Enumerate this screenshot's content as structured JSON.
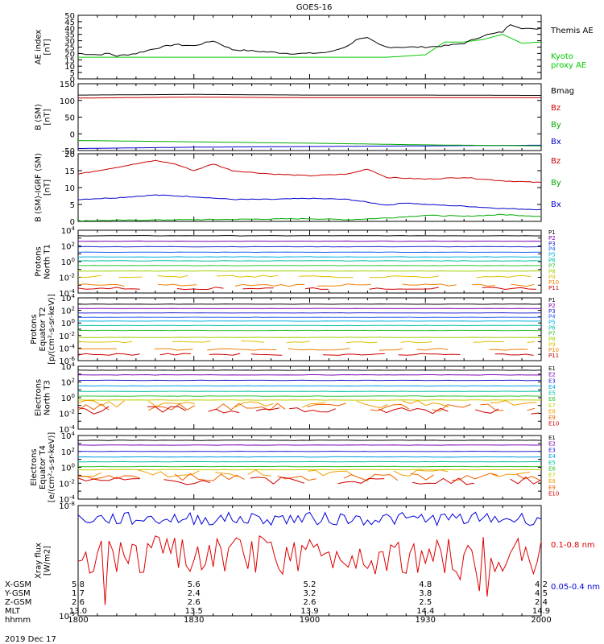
{
  "title": "GOES-16",
  "date_label": "2019 Dec 17",
  "time_axis": {
    "rows": [
      {
        "label": "X-GSM",
        "values": [
          "5.8",
          "5.6",
          "5.2",
          "4.8",
          "4.2"
        ]
      },
      {
        "label": "Y-GSM",
        "values": [
          "1.7",
          "2.4",
          "3.2",
          "3.8",
          "4.5"
        ]
      },
      {
        "label": "Z-GSM",
        "values": [
          "2.6",
          "2.6",
          "2.6",
          "2.5",
          "2.4"
        ]
      },
      {
        "label": "MLT",
        "values": [
          "13.0",
          "13.5",
          "13.9",
          "14.4",
          "14.9"
        ]
      },
      {
        "label": "hhmm",
        "values": [
          "1800",
          "1830",
          "1900",
          "1930",
          "2000"
        ]
      }
    ]
  },
  "chart_data": [
    {
      "type": "line",
      "ylabel": [
        "AE index",
        "[nT]"
      ],
      "ylim": [
        0,
        50
      ],
      "yticks": [
        "0",
        "5",
        "10",
        "15",
        "20",
        "25",
        "30",
        "35",
        "40",
        "45",
        "50"
      ],
      "x_minutes": [
        0,
        120
      ],
      "series": [
        {
          "name": "Kyoto\nproxy AE",
          "color": "#00cc00",
          "x": [
            0,
            20,
            40,
            60,
            80,
            90,
            95,
            100,
            105,
            110,
            115,
            120
          ],
          "y": [
            17,
            17,
            17,
            17,
            17,
            19,
            29,
            29,
            31,
            35,
            28,
            29
          ]
        },
        {
          "name": "Themis AE",
          "color": "#000000",
          "x": [
            0,
            5,
            8,
            10,
            15,
            20,
            25,
            30,
            35,
            40,
            45,
            50,
            55,
            60,
            65,
            70,
            72,
            75,
            78,
            80,
            85,
            90,
            95,
            100,
            105,
            110,
            112,
            115,
            118,
            120
          ],
          "y": [
            20,
            19,
            20,
            18,
            20,
            24,
            27,
            26,
            30,
            23,
            22,
            21,
            20,
            20,
            21,
            26,
            31,
            32,
            27,
            25,
            25,
            25,
            26,
            28,
            34,
            37,
            43,
            40,
            39,
            40
          ]
        }
      ]
    },
    {
      "type": "line",
      "ylabel": [
        "B (SM)",
        "[nT]"
      ],
      "ylim": [
        -50,
        150
      ],
      "yticks": [
        "-50",
        "0",
        "50",
        "100",
        "150"
      ],
      "series": [
        {
          "name": "Bx",
          "color": "#0000cc",
          "x": [
            0,
            30,
            60,
            90,
            120
          ],
          "y": [
            -44,
            -40,
            -38,
            -36,
            -34
          ]
        },
        {
          "name": "By",
          "color": "#00aa00",
          "x": [
            0,
            30,
            60,
            90,
            120
          ],
          "y": [
            -20,
            -24,
            -28,
            -33,
            -36
          ]
        },
        {
          "name": "Bz",
          "color": "#cc0000",
          "x": [
            0,
            30,
            60,
            90,
            120
          ],
          "y": [
            107,
            110,
            108,
            108,
            108
          ]
        },
        {
          "name": "Bmag",
          "color": "#000000",
          "x": [
            0,
            30,
            60,
            90,
            120
          ],
          "y": [
            116,
            118,
            116,
            116,
            115
          ]
        }
      ]
    },
    {
      "type": "line",
      "ylabel": [
        "B (SM)-IGRF (SM)",
        "[nT]"
      ],
      "ylim": [
        0,
        20
      ],
      "yticks": [
        "0",
        "5",
        "10",
        "15",
        "20"
      ],
      "series": [
        {
          "name": "Bx",
          "color": "#0000cc",
          "x": [
            0,
            10,
            20,
            30,
            40,
            50,
            60,
            70,
            80,
            85,
            90,
            100,
            110,
            120
          ],
          "y": [
            6.5,
            7,
            7.8,
            7.3,
            6.5,
            6.5,
            6.8,
            6.5,
            4.8,
            5.5,
            5.0,
            4.5,
            3.8,
            3.5
          ]
        },
        {
          "name": "By",
          "color": "#00aa00",
          "x": [
            0,
            20,
            40,
            60,
            70,
            80,
            90,
            100,
            110,
            120
          ],
          "y": [
            0.2,
            0.4,
            0.6,
            0.8,
            0.5,
            1.0,
            1.8,
            1.5,
            2.0,
            1.5
          ]
        },
        {
          "name": "Bz",
          "color": "#cc0000",
          "x": [
            0,
            10,
            20,
            25,
            30,
            35,
            40,
            50,
            60,
            70,
            75,
            80,
            90,
            100,
            110,
            120
          ],
          "y": [
            14,
            16,
            18,
            17,
            15,
            17,
            15,
            14,
            13.5,
            14,
            15.5,
            13,
            12.5,
            13,
            12,
            11.5
          ]
        }
      ]
    },
    {
      "type": "line",
      "scale": "log",
      "ylabel": [
        "Protons",
        "North T1"
      ],
      "ylim_exp": [
        -4,
        4
      ],
      "ytick_exps": [
        -4,
        -2,
        0,
        2,
        4
      ],
      "channels": [
        "P1",
        "P2",
        "P3",
        "P4",
        "P5",
        "P6",
        "P7",
        "P8",
        "P9",
        "P10",
        "P11"
      ],
      "channel_colors": [
        "#000000",
        "#7a00b0",
        "#2020d0",
        "#2060f0",
        "#00b0e0",
        "#00c0a0",
        "#30c030",
        "#a0d000",
        "#e0c000",
        "#f08000",
        "#d00000"
      ],
      "levels_exp": [
        3.3,
        2.6,
        1.9,
        1.2,
        0.6,
        0.1,
        -0.5,
        -1.2,
        -1.9,
        -3.0,
        -3.4
      ]
    },
    {
      "type": "line",
      "scale": "log",
      "ylabel": [
        "Protons",
        "Equator T2",
        "[p/(cm²-s-sr-keV)]"
      ],
      "ylim_exp": [
        -6,
        4
      ],
      "ytick_exps": [
        -6,
        -4,
        -2,
        0,
        2,
        4
      ],
      "channels": [
        "P1",
        "P2",
        "P3",
        "P4",
        "P5",
        "P6",
        "P7",
        "P8",
        "P9",
        "P10",
        "P11"
      ],
      "channel_colors": [
        "#000000",
        "#7a00b0",
        "#2020d0",
        "#2060f0",
        "#00b0e0",
        "#00c0a0",
        "#30c030",
        "#a0d000",
        "#e0c000",
        "#f08000",
        "#d00000"
      ],
      "levels_exp": [
        3.0,
        2.3,
        1.6,
        0.9,
        0.3,
        -0.4,
        -1.2,
        -2.3,
        -3.0,
        -4.2,
        -5.0
      ]
    },
    {
      "type": "line",
      "scale": "log",
      "ylabel": [
        "Electrons",
        "North T3"
      ],
      "ylim_exp": [
        -4,
        4
      ],
      "ytick_exps": [
        -4,
        -2,
        0,
        2,
        4
      ],
      "channels": [
        "E1",
        "E2",
        "E3",
        "E4",
        "E5",
        "E6",
        "E7",
        "E8",
        "E9",
        "E10"
      ],
      "channel_colors": [
        "#000000",
        "#7a00b0",
        "#2020d0",
        "#00a0e0",
        "#00c0a0",
        "#30c030",
        "#c0d000",
        "#f0a000",
        "#f06000",
        "#d00000"
      ],
      "levels_exp": [
        3.5,
        2.9,
        2.2,
        1.5,
        0.8,
        0.2,
        -0.3,
        -0.8,
        -1.2,
        -1.6
      ]
    },
    {
      "type": "line",
      "scale": "log",
      "ylabel": [
        "Electrons",
        "Equator T4",
        "[e/(cm²-s-sr-keV)]"
      ],
      "ylim_exp": [
        -4,
        4
      ],
      "ytick_exps": [
        -4,
        -2,
        0,
        2,
        4
      ],
      "channels": [
        "E1",
        "E2",
        "E3",
        "E4",
        "E5",
        "E6",
        "E7",
        "E8",
        "E9",
        "E10"
      ],
      "channel_colors": [
        "#000000",
        "#7a00b0",
        "#2020d0",
        "#00a0e0",
        "#00c0a0",
        "#30c030",
        "#c0d000",
        "#f0a000",
        "#f06000",
        "#d00000"
      ],
      "levels_exp": [
        3.4,
        2.8,
        2.0,
        1.3,
        0.7,
        0.1,
        -0.3,
        -0.8,
        -1.2,
        -1.7
      ]
    },
    {
      "type": "line",
      "scale": "log",
      "ylabel": [
        "Xray flux",
        "[W/m2]"
      ],
      "ylim_exp": [
        -9,
        -8
      ],
      "ytick_labels": [
        {
          "exp": -8,
          "text": "10⁻⁸"
        },
        {
          "exp": -9,
          "text": "10⁻⁹"
        }
      ],
      "series": [
        {
          "name": "0.1-0.8 nm",
          "color": "#dd0000"
        },
        {
          "name": "0.05-0.4 nm",
          "color": "#0000dd"
        }
      ]
    }
  ]
}
